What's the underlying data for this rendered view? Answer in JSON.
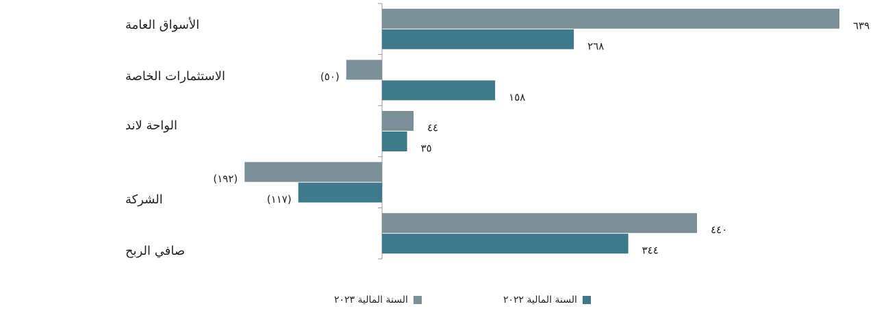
{
  "chart_data": {
    "type": "bar",
    "orientation": "horizontal",
    "categories": [
      "الأسواق العامة",
      "الاستثمارات الخاصة",
      "الواحة لاند",
      "الشركة",
      "صافي الربح"
    ],
    "series": [
      {
        "name": "السنة المالية ٢٠٢٣",
        "color": "#7b8f97",
        "values": [
          639,
          -50,
          44,
          -192,
          440
        ],
        "labels": [
          "٦٣٩",
          "(٥٠)",
          "٤٤",
          "(١٩٢)",
          "٤٤٠"
        ]
      },
      {
        "name": "السنة المالية ٢٠٢٢",
        "color": "#3e7a8c",
        "values": [
          268,
          158,
          35,
          -117,
          344
        ],
        "labels": [
          "٢٦٨",
          "١٥٨",
          "٣٥",
          "(١١٧)",
          "٣٤٤"
        ]
      }
    ],
    "xlim": [
      -200,
      639
    ],
    "grid": false,
    "legend_position": "bottom"
  }
}
